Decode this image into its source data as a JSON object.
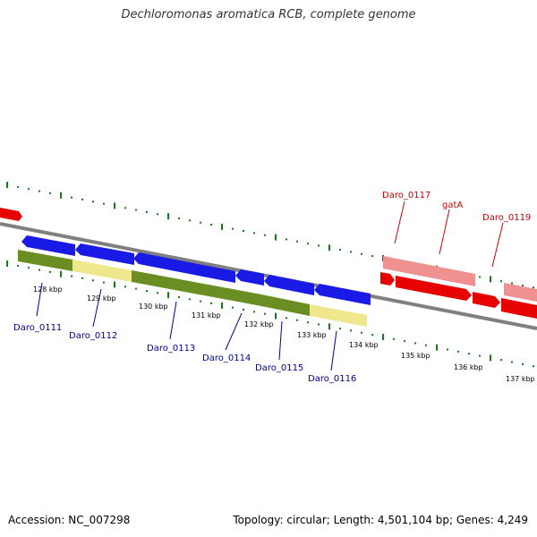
{
  "title": "Dechloromonas aromatica RCB, complete genome",
  "footer": {
    "accession": "Accession: NC_007298",
    "stats": "Topology: circular; Length: 4,501,104 bp; Genes: 4,249"
  },
  "colors": {
    "forward_gene": "#e60000",
    "forward_gene_light": "#f09090",
    "reverse_gene": "#1a1ae6",
    "reverse_gene_label": "#00008b",
    "forward_gene_label": "#cc0000",
    "dark_green": "#6b8e23",
    "pale_yellow": "#f0e68c",
    "ticks": "#1a7a1a",
    "backbone": "#808080"
  },
  "scale_labels": [
    "128 kbp",
    "129 kbp",
    "130 kbp",
    "131 kbp",
    "132 kbp",
    "133 kbp",
    "134 kbp",
    "135 kbp",
    "136 kbp",
    "137 kbp"
  ],
  "reverse_gene_labels": [
    "Daro_0111",
    "Daro_0112",
    "Daro_0113",
    "Daro_0114",
    "Daro_0115",
    "Daro_0116"
  ],
  "forward_gene_labels": [
    "Daro_0117",
    "gatA",
    "Daro_0119"
  ]
}
